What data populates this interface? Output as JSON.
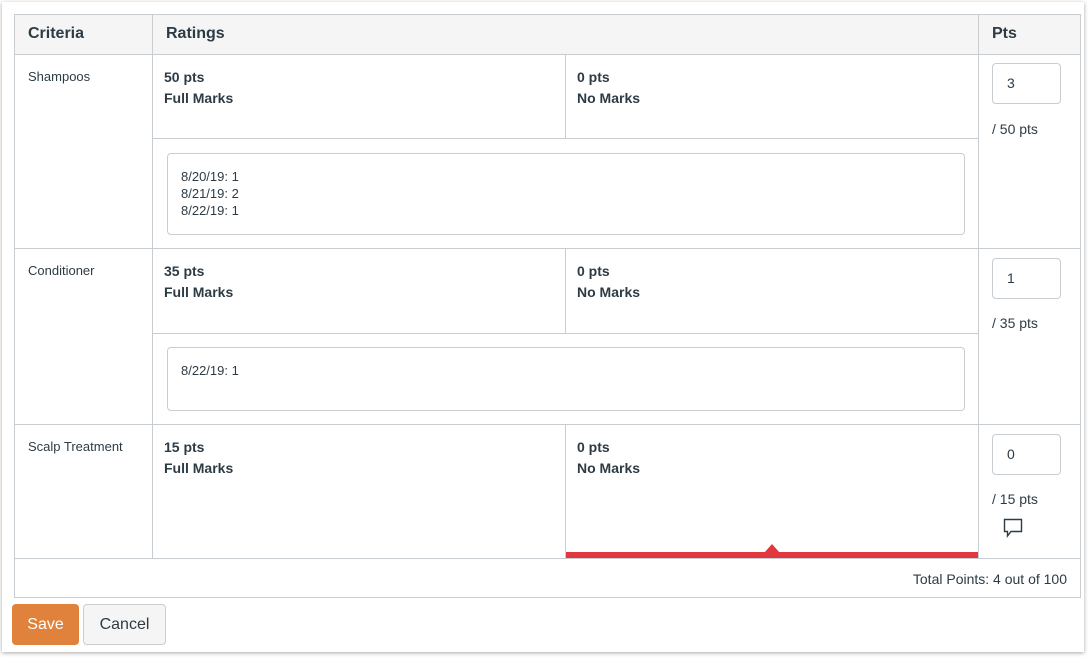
{
  "headers": {
    "criteria": "Criteria",
    "ratings": "Ratings",
    "pts": "Pts"
  },
  "criteria": [
    {
      "name": "Shampoos",
      "ratings": [
        {
          "pts": "50 pts",
          "label": "Full Marks"
        },
        {
          "pts": "0 pts",
          "label": "No Marks"
        }
      ],
      "comment": "8/20/19: 1\n8/21/19: 2\n8/22/19: 1",
      "points": "3",
      "out_of": "/ 50 pts"
    },
    {
      "name": "Conditioner",
      "ratings": [
        {
          "pts": "35 pts",
          "label": "Full Marks"
        },
        {
          "pts": "0 pts",
          "label": "No Marks"
        }
      ],
      "comment": "8/22/19: 1",
      "points": "1",
      "out_of": "/ 35 pts"
    },
    {
      "name": "Scalp Treatment",
      "ratings": [
        {
          "pts": "15 pts",
          "label": "Full Marks"
        },
        {
          "pts": "0 pts",
          "label": "No Marks"
        }
      ],
      "points": "0",
      "out_of": "/ 15 pts",
      "selected_rating": "No Marks",
      "comment_icon": "speech-bubble-icon"
    }
  ],
  "total": "Total Points: 4 out of 100",
  "buttons": {
    "save": "Save",
    "cancel": "Cancel"
  },
  "colors": {
    "accent": "#e0823c",
    "selected": "#e0383e"
  }
}
